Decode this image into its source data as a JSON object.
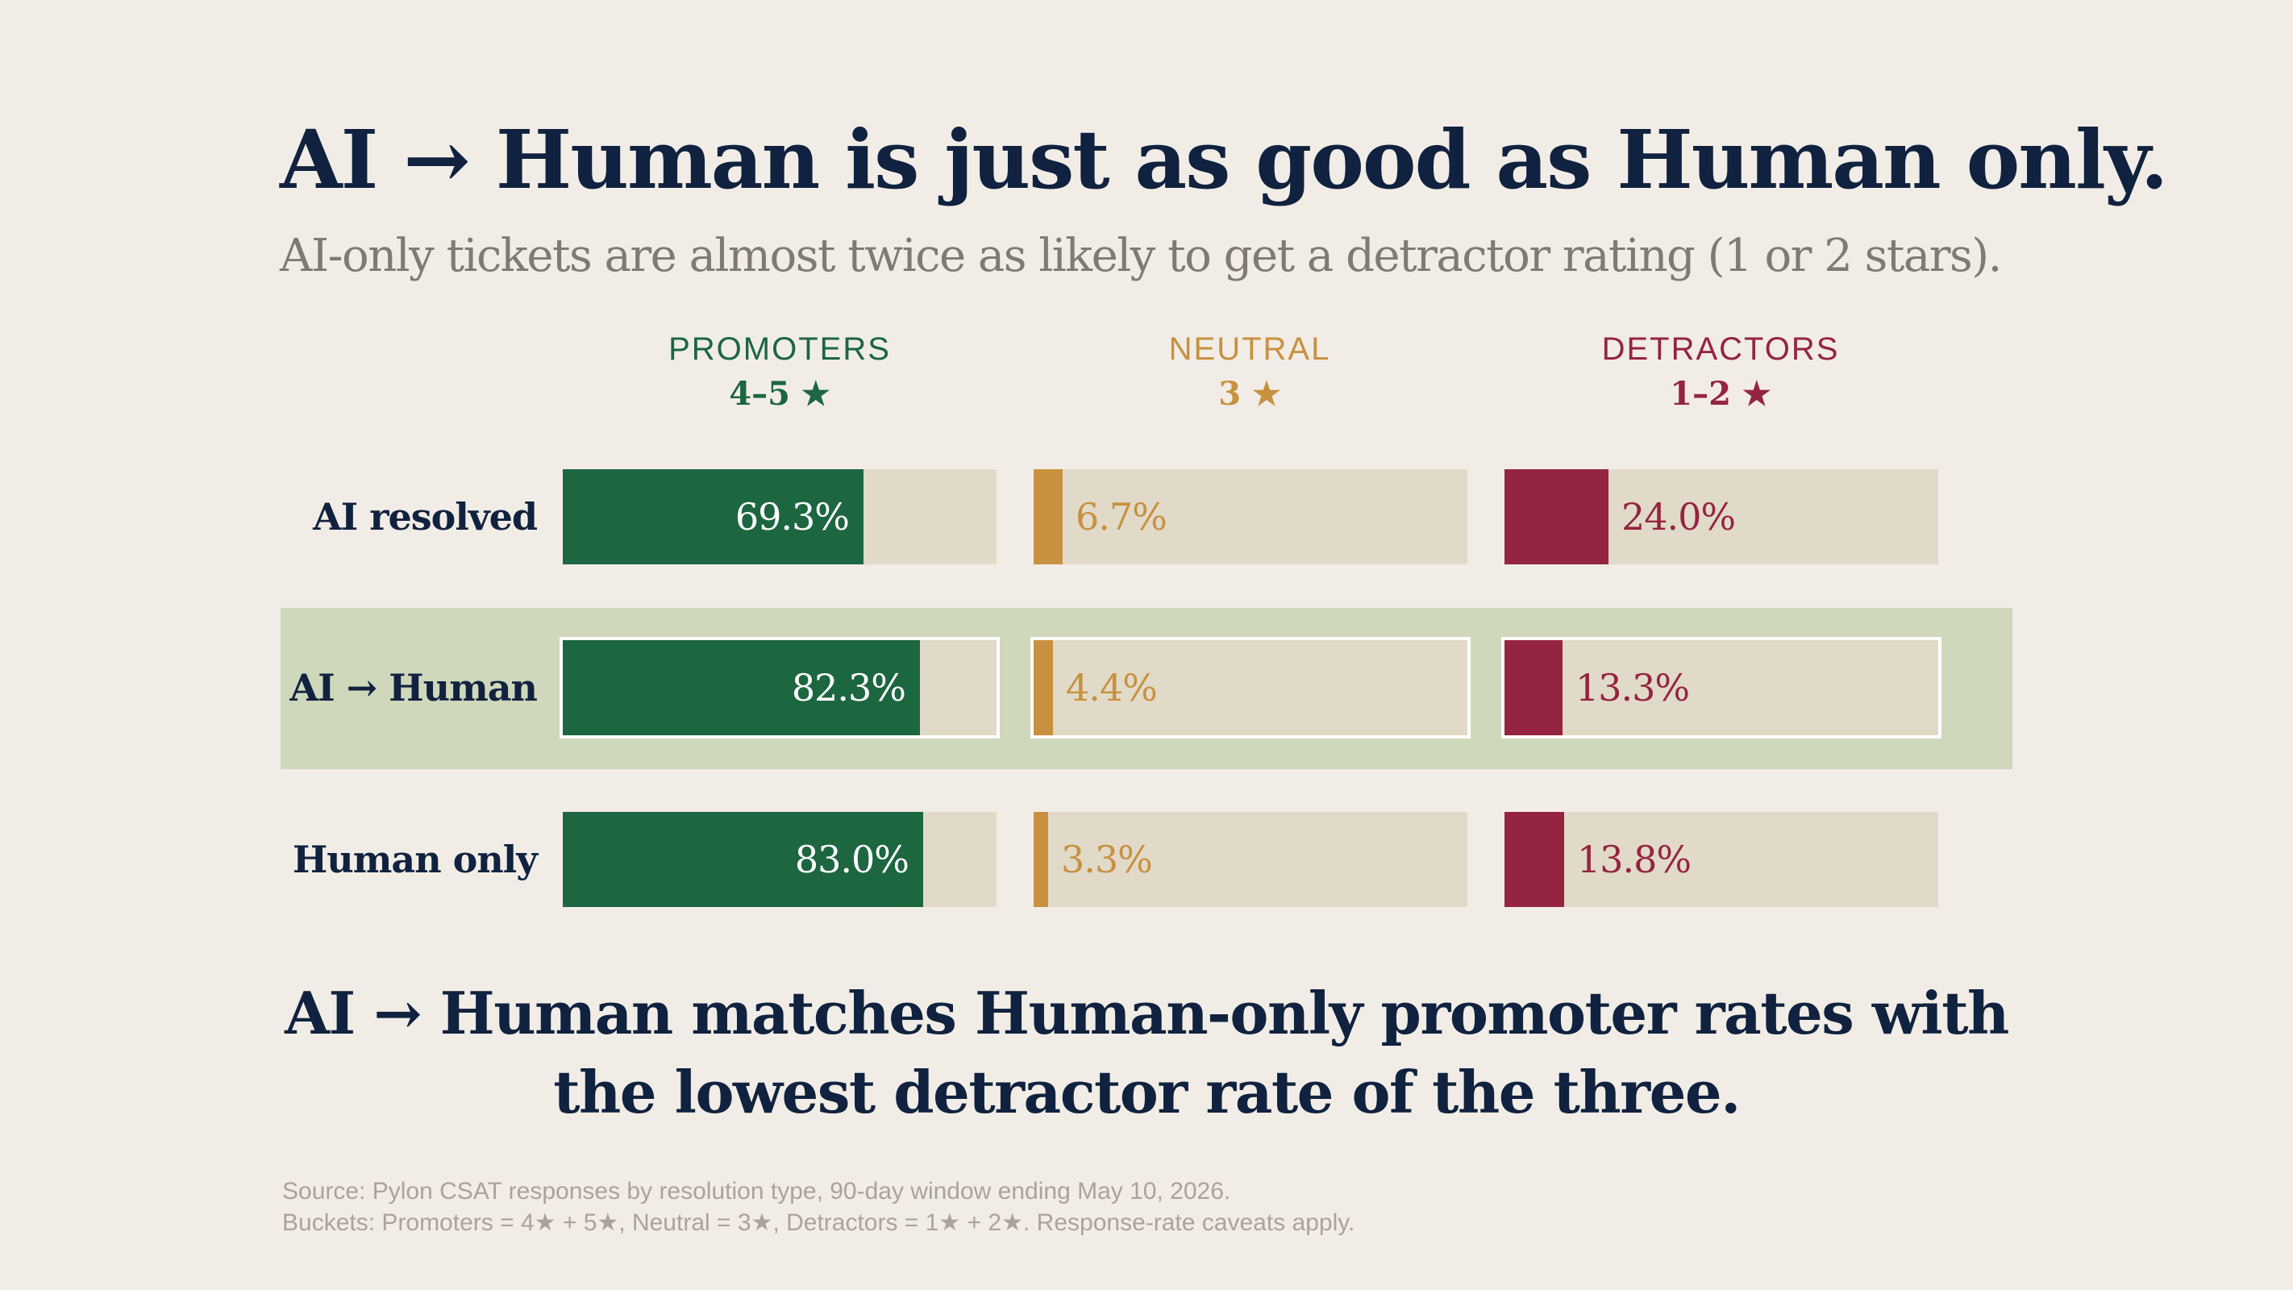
{
  "title": "AI → Human is just as good as Human only.",
  "subtitle": "AI-only tickets are almost twice as likely to get a detractor rating (1 or 2 stars).",
  "colors": {
    "promoters": "#1c6640",
    "neutral": "#c8913f",
    "detractors": "#952440",
    "track": "#e1dac8",
    "highlight": "#cfd8bb",
    "text": "#10223f"
  },
  "chart_data": {
    "type": "bar",
    "title": "AI → Human is just as good as Human only.",
    "subtitle": "AI-only tickets are almost twice as likely to get a detractor rating (1 or 2 stars).",
    "categories": [
      "AI resolved",
      "AI → Human",
      "Human only"
    ],
    "highlighted_category": "AI → Human",
    "series": [
      {
        "key": "promoters",
        "name": "PROMOTERS",
        "stars": "4–5 ★",
        "values": [
          69.3,
          82.3,
          83.0
        ],
        "labels": [
          "69.3%",
          "82.3%",
          "83.0%"
        ]
      },
      {
        "key": "neutral",
        "name": "NEUTRAL",
        "stars": "3 ★",
        "values": [
          6.7,
          4.4,
          3.3
        ],
        "labels": [
          "6.7%",
          "4.4%",
          "3.3%"
        ]
      },
      {
        "key": "detractors",
        "name": "DETRACTORS",
        "stars": "1–2 ★",
        "values": [
          24.0,
          13.3,
          13.8
        ],
        "labels": [
          "24.0%",
          "13.3%",
          "13.8%"
        ]
      }
    ],
    "xlim": [
      0,
      100
    ],
    "unit": "%"
  },
  "takeaway": {
    "line1": "AI → Human matches Human-only promoter rates with",
    "line2": "the lowest detractor rate of the three."
  },
  "source": {
    "line1": "Source: Pylon CSAT responses by resolution type, 90-day window ending May 10, 2026.",
    "line2": "Buckets: Promoters = 4★ + 5★, Neutral = 3★, Detractors = 1★ + 2★. Response-rate caveats apply."
  }
}
